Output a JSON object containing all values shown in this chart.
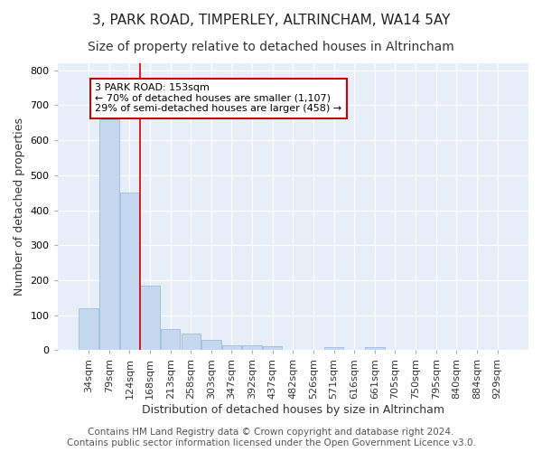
{
  "title": "3, PARK ROAD, TIMPERLEY, ALTRINCHAM, WA14 5AY",
  "subtitle": "Size of property relative to detached houses in Altrincham",
  "xlabel": "Distribution of detached houses by size in Altrincham",
  "ylabel": "Number of detached properties",
  "footer_lines": [
    "Contains HM Land Registry data © Crown copyright and database right 2024.",
    "Contains public sector information licensed under the Open Government Licence v3.0."
  ],
  "bar_labels": [
    "34sqm",
    "79sqm",
    "124sqm",
    "168sqm",
    "213sqm",
    "258sqm",
    "303sqm",
    "347sqm",
    "392sqm",
    "437sqm",
    "482sqm",
    "526sqm",
    "571sqm",
    "616sqm",
    "661sqm",
    "705sqm",
    "750sqm",
    "795sqm",
    "840sqm",
    "884sqm",
    "929sqm"
  ],
  "bar_values": [
    120,
    660,
    450,
    185,
    60,
    48,
    28,
    13,
    13,
    10,
    0,
    0,
    8,
    0,
    8,
    0,
    0,
    0,
    0,
    0,
    0
  ],
  "bar_color": "#c5d8ef",
  "bar_edge_color": "#9abcd8",
  "background_color": "#ffffff",
  "plot_bg_color": "#e8eef8",
  "grid_color": "#ffffff",
  "annotation_box_text": "3 PARK ROAD: 153sqm\n← 70% of detached houses are smaller (1,107)\n29% of semi-detached houses are larger (458) →",
  "annotation_box_color": "#ffffff",
  "annotation_box_edge_color": "#cc0000",
  "red_line_x": 2.5,
  "ylim": [
    0,
    820
  ],
  "yticks": [
    0,
    100,
    200,
    300,
    400,
    500,
    600,
    700,
    800
  ],
  "title_fontsize": 11,
  "subtitle_fontsize": 10,
  "axis_label_fontsize": 9,
  "tick_fontsize": 8,
  "annotation_fontsize": 8,
  "footer_fontsize": 7.5
}
